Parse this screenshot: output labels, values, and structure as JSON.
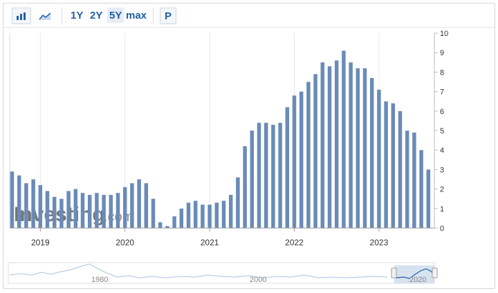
{
  "toolbar": {
    "icons": [
      "bar-chart-icon",
      "area-chart-icon"
    ],
    "ranges": [
      "1Y",
      "2Y",
      "5Y",
      "max"
    ],
    "active_range": "5Y",
    "p_label": "P"
  },
  "watermark": {
    "brand": "Investing",
    "suffix": ".com"
  },
  "colors": {
    "bar": "#6a8bb8",
    "accent": "#1f5fa6",
    "grid": "#e6e6e6",
    "navigator_line": "#a8c4e0"
  },
  "chart_data": {
    "type": "bar",
    "title": "",
    "xlabel": "",
    "ylabel": "",
    "ylim": [
      0,
      10
    ],
    "y_ticks": [
      0,
      1,
      2,
      3,
      4,
      5,
      6,
      7,
      8,
      9,
      10
    ],
    "x_tick_labels": [
      "2019",
      "2020",
      "2021",
      "2022",
      "2023"
    ],
    "x_start": "2018-09",
    "grid": "vertical",
    "values": [
      2.9,
      2.7,
      2.3,
      2.5,
      2.2,
      1.9,
      1.6,
      1.5,
      1.9,
      2.0,
      1.8,
      1.7,
      1.8,
      1.7,
      1.7,
      1.8,
      2.1,
      2.3,
      2.5,
      2.3,
      1.5,
      0.3,
      0.1,
      0.6,
      1.0,
      1.3,
      1.4,
      1.2,
      1.2,
      1.3,
      1.4,
      1.7,
      2.6,
      4.2,
      5.0,
      5.4,
      5.4,
      5.3,
      5.4,
      6.2,
      6.8,
      7.0,
      7.5,
      7.9,
      8.5,
      8.3,
      8.6,
      9.1,
      8.5,
      8.2,
      8.2,
      7.7,
      7.1,
      6.5,
      6.4,
      6.0,
      5.0,
      4.9,
      4.0,
      3.0
    ]
  },
  "navigator": {
    "labels": [
      "1980",
      "2000",
      "2020"
    ]
  }
}
